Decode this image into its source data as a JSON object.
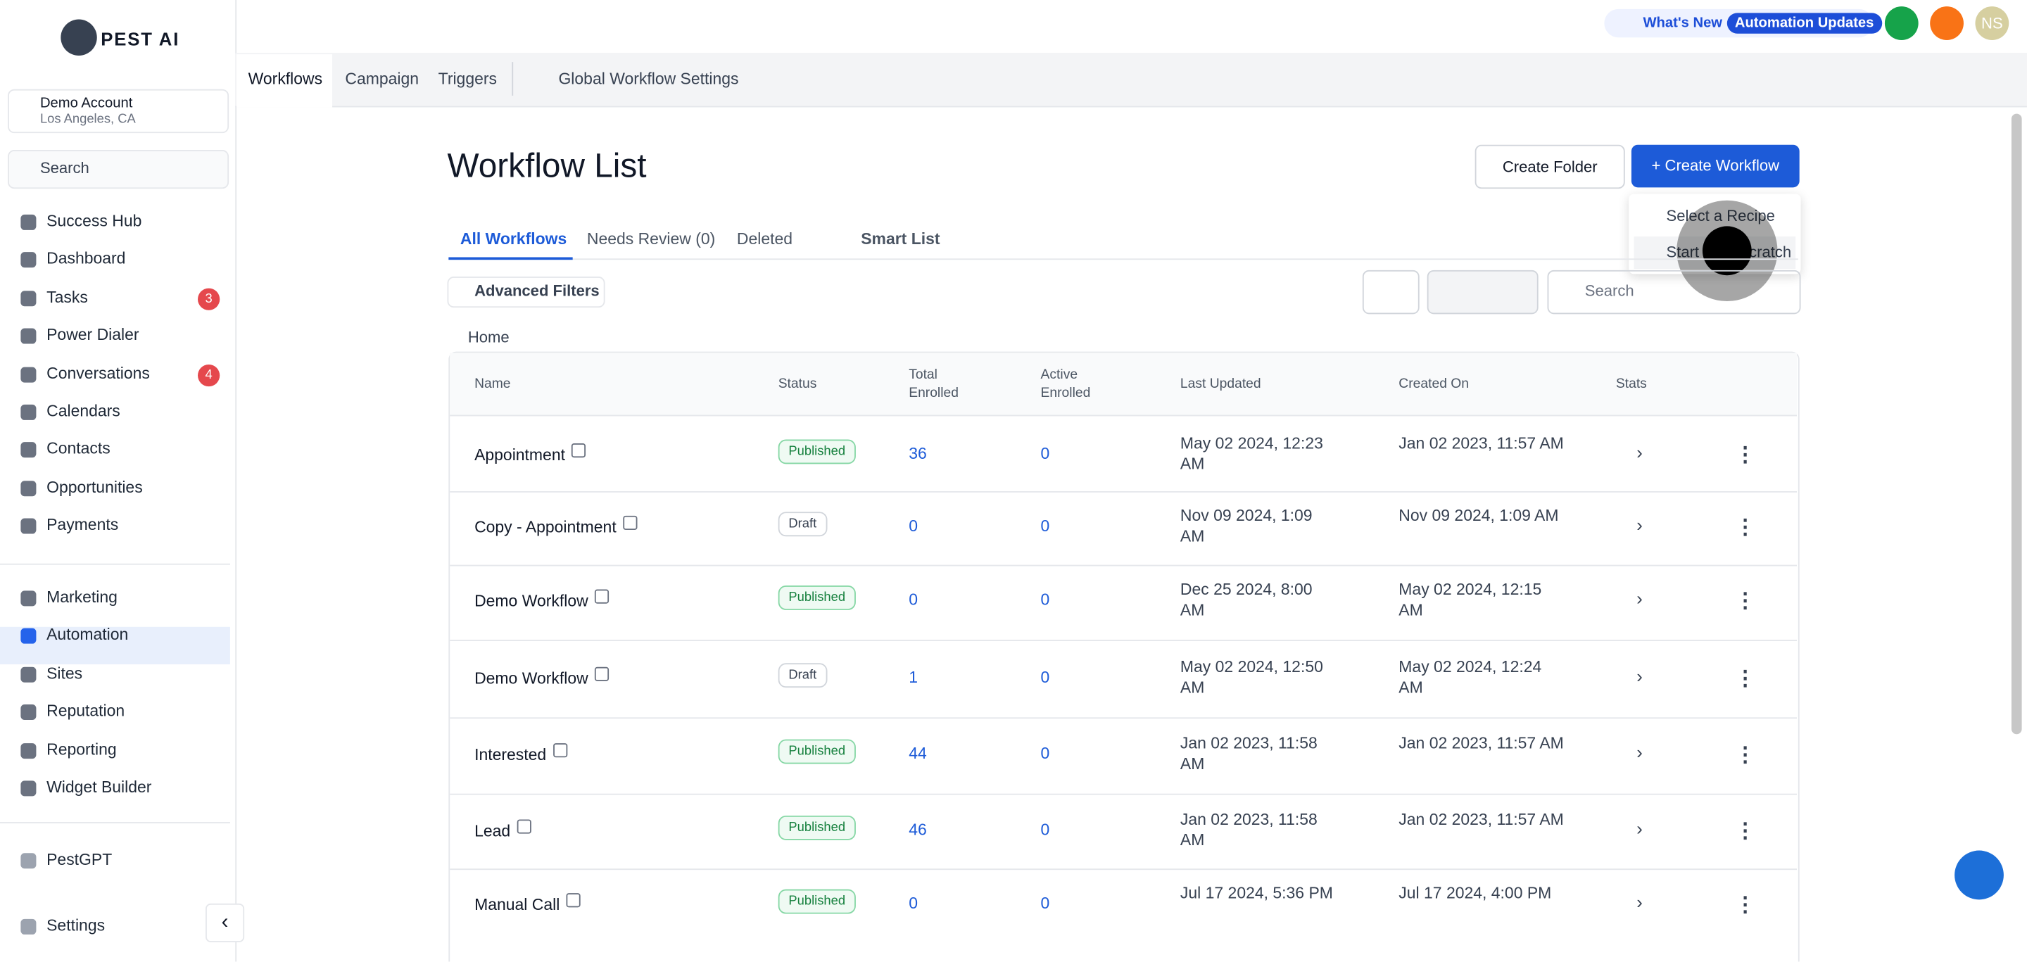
{
  "brand": "PEST AI",
  "header": {
    "whats_new": "What's New",
    "automation_updates": "Automation Updates",
    "avatar": "NS"
  },
  "account": {
    "name": "Demo Account",
    "location": "Los Angeles, CA"
  },
  "sidebar": {
    "search": "Search",
    "main": [
      {
        "label": "Success Hub"
      },
      {
        "label": "Dashboard"
      },
      {
        "label": "Tasks",
        "badge": "3"
      },
      {
        "label": "Power Dialer"
      },
      {
        "label": "Conversations",
        "badge": "4"
      },
      {
        "label": "Calendars"
      },
      {
        "label": "Contacts"
      },
      {
        "label": "Opportunities"
      },
      {
        "label": "Payments"
      }
    ],
    "marketing": [
      {
        "label": "Marketing"
      },
      {
        "label": "Automation"
      },
      {
        "label": "Sites"
      },
      {
        "label": "Reputation"
      },
      {
        "label": "Reporting"
      },
      {
        "label": "Widget Builder"
      }
    ],
    "bottom": [
      {
        "label": "PestGPT"
      },
      {
        "label": "Settings"
      }
    ]
  },
  "tabs": [
    "Workflows",
    "Campaign",
    "Triggers",
    "Global Workflow Settings"
  ],
  "page": {
    "title": "Workflow List",
    "create_folder": "Create Folder",
    "create_workflow": "Create Workflow",
    "menu": [
      "Select a Recipe",
      "Start from Scratch"
    ],
    "subtabs": [
      "All Workflows",
      "Needs Review (0)",
      "Deleted",
      "Smart List"
    ],
    "filters": "Advanced Filters",
    "search": "Search",
    "breadcrumb": "Home"
  },
  "table": {
    "columns": [
      "Name",
      "Status",
      "Total Enrolled",
      "Active Enrolled",
      "Last Updated",
      "Created On",
      "Stats"
    ],
    "rows": [
      [
        "Appointment",
        "Published",
        "36",
        "0",
        "May 02 2024, 12:23 AM",
        "Jan 02 2023, 11:57 AM"
      ],
      [
        "Copy - Appointment",
        "Draft",
        "0",
        "0",
        "Nov 09 2024, 1:09 AM",
        "Nov 09 2024, 1:09 AM"
      ],
      [
        "Demo Workflow",
        "Published",
        "0",
        "0",
        "Dec 25 2024, 8:00 AM",
        "May 02 2024, 12:15 AM"
      ],
      [
        "Demo Workflow",
        "Draft",
        "1",
        "0",
        "May 02 2024, 12:50 AM",
        "May 02 2024, 12:24 AM"
      ],
      [
        "Interested",
        "Published",
        "44",
        "0",
        "Jan 02 2023, 11:58 AM",
        "Jan 02 2023, 11:57 AM"
      ],
      [
        "Lead",
        "Published",
        "46",
        "0",
        "Jan 02 2023, 11:58 AM",
        "Jan 02 2023, 11:57 AM"
      ],
      [
        "Manual Call",
        "Published",
        "0",
        "0",
        "Jul 17 2024, 5:36 PM",
        "Jul 17 2024, 4:00 PM"
      ]
    ]
  }
}
